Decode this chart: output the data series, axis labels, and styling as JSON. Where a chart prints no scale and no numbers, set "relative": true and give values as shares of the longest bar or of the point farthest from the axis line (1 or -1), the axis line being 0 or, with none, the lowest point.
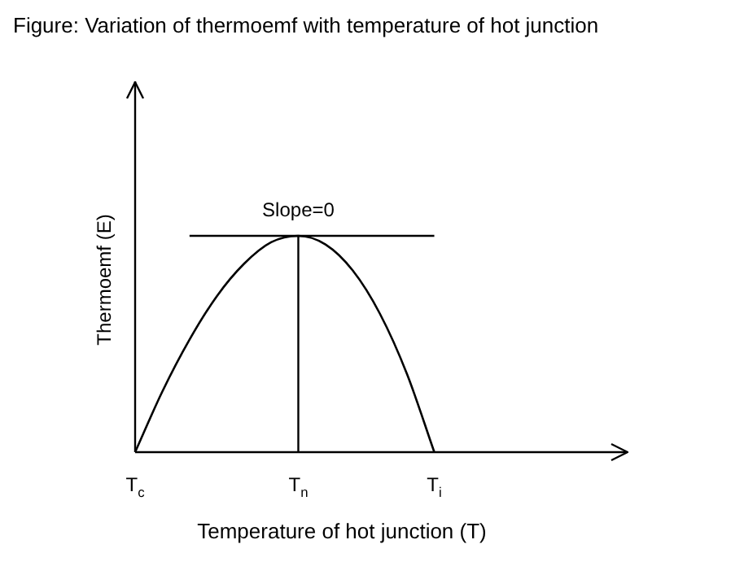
{
  "chart_data": {
    "type": "line",
    "title": "Figure: Variation of thermoemf with temperature of hot junction",
    "xlabel": "Temperature of hot junction (T)",
    "ylabel": "Thermoemf (E)",
    "categories": [
      "T$_{c}$",
      null,
      null,
      null,
      null,
      null,
      "T$_{n}$",
      null,
      null,
      null,
      null,
      "T$_{i}$",
      null,
      null,
      null,
      null,
      null,
      null
    ],
    "relative": true,
    "legend": false,
    "grid": false,
    "marker": "none",
    "series": [
      {
        "color": "#000000",
        "values": [
          0,
          0.28,
          0.52,
          0.72,
          0.87,
          0.97,
          1,
          0.96,
          0.84,
          0.64,
          0.36,
          0,
          null,
          null,
          null,
          null,
          null,
          null
        ]
      },
      {
        "color": "#000000",
        "values": [
          null,
          null,
          1,
          1,
          1,
          1,
          1,
          1,
          1,
          1,
          1,
          1,
          null,
          null,
          null,
          null,
          null,
          null
        ]
      }
    ],
    "ref_lines": [
      {
        "axis": "x",
        "value": "T$_{n}$"
      }
    ],
    "annotations": [
      {
        "text": "Slope=0",
        "x": "T$_{n}$",
        "y": 1
      }
    ]
  }
}
